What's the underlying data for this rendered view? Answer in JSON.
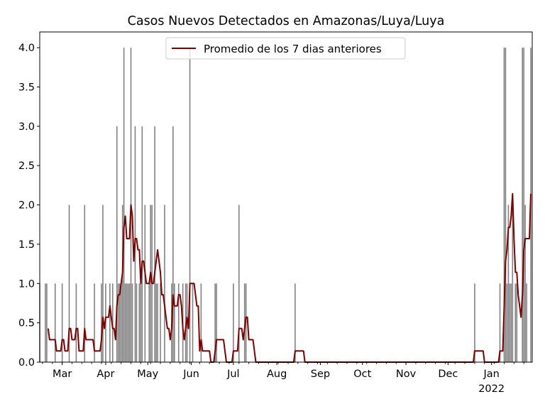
{
  "chart_data": {
    "type": "bar",
    "title": "Casos Nuevos Detectados en Amazonas/Luya/Luya",
    "xlabel": "",
    "ylabel": "",
    "xlim": [
      "2021-02-13",
      "2022-01-30"
    ],
    "ylim": [
      0,
      4.2
    ],
    "yticks": [
      "0.0",
      "0.5",
      "1.0",
      "1.5",
      "2.0",
      "2.5",
      "3.0",
      "3.5",
      "4.0"
    ],
    "xticks": [
      {
        "date": "2021-03-01",
        "label": "Mar"
      },
      {
        "date": "2021-04-01",
        "label": "Apr"
      },
      {
        "date": "2021-05-01",
        "label": "May"
      },
      {
        "date": "2021-06-01",
        "label": "Jun"
      },
      {
        "date": "2021-07-01",
        "label": "Jul"
      },
      {
        "date": "2021-08-01",
        "label": "Aug"
      },
      {
        "date": "2021-09-01",
        "label": "Sep"
      },
      {
        "date": "2021-10-01",
        "label": "Oct"
      },
      {
        "date": "2021-11-01",
        "label": "Nov"
      },
      {
        "date": "2021-12-01",
        "label": "Dec"
      },
      {
        "date": "2022-01-01",
        "label": "Jan",
        "sublabel": "2022"
      }
    ],
    "grid": false,
    "legend": {
      "position": "top-center",
      "entries": [
        {
          "label": "Promedio de los 7 dias anteriores",
          "color": "#800000"
        }
      ]
    },
    "colors": {
      "bars": "#808080",
      "line": "#800000"
    },
    "series": [
      {
        "kind": "bar",
        "note_zero_days_omitted": true,
        "points": [
          [
            "2021-02-13",
            1
          ],
          [
            "2021-02-17",
            1
          ],
          [
            "2021-02-18",
            1
          ],
          [
            "2021-02-24",
            1
          ],
          [
            "2021-03-01",
            1
          ],
          [
            "2021-03-06",
            2
          ],
          [
            "2021-03-11",
            1
          ],
          [
            "2021-03-17",
            2
          ],
          [
            "2021-03-24",
            1
          ],
          [
            "2021-03-29",
            1
          ],
          [
            "2021-03-30",
            2
          ],
          [
            "2021-04-01",
            1
          ],
          [
            "2021-04-04",
            1
          ],
          [
            "2021-04-06",
            1
          ],
          [
            "2021-04-09",
            3
          ],
          [
            "2021-04-10",
            1
          ],
          [
            "2021-04-11",
            1
          ],
          [
            "2021-04-12",
            1
          ],
          [
            "2021-04-13",
            2
          ],
          [
            "2021-04-14",
            4
          ],
          [
            "2021-04-15",
            1
          ],
          [
            "2021-04-16",
            1
          ],
          [
            "2021-04-17",
            1
          ],
          [
            "2021-04-18",
            1
          ],
          [
            "2021-04-19",
            4
          ],
          [
            "2021-04-20",
            1
          ],
          [
            "2021-04-22",
            3
          ],
          [
            "2021-04-23",
            1
          ],
          [
            "2021-04-25",
            1
          ],
          [
            "2021-04-26",
            1
          ],
          [
            "2021-04-27",
            3
          ],
          [
            "2021-04-29",
            2
          ],
          [
            "2021-05-02",
            1
          ],
          [
            "2021-05-03",
            2
          ],
          [
            "2021-05-04",
            2
          ],
          [
            "2021-05-06",
            3
          ],
          [
            "2021-05-07",
            1
          ],
          [
            "2021-05-08",
            1
          ],
          [
            "2021-05-10",
            1
          ],
          [
            "2021-05-13",
            2
          ],
          [
            "2021-05-18",
            1
          ],
          [
            "2021-05-19",
            3
          ],
          [
            "2021-05-20",
            1
          ],
          [
            "2021-05-23",
            1
          ],
          [
            "2021-05-26",
            1
          ],
          [
            "2021-05-28",
            1
          ],
          [
            "2021-05-29",
            1
          ],
          [
            "2021-05-31",
            4
          ],
          [
            "2021-06-02",
            1
          ],
          [
            "2021-06-08",
            1
          ],
          [
            "2021-06-18",
            1
          ],
          [
            "2021-06-19",
            1
          ],
          [
            "2021-07-01",
            1
          ],
          [
            "2021-07-05",
            2
          ],
          [
            "2021-07-09",
            1
          ],
          [
            "2021-07-10",
            1
          ],
          [
            "2021-08-14",
            1
          ],
          [
            "2021-12-20",
            1
          ],
          [
            "2022-01-07",
            1
          ],
          [
            "2022-01-10",
            4
          ],
          [
            "2022-01-11",
            4
          ],
          [
            "2022-01-12",
            1
          ],
          [
            "2022-01-13",
            2
          ],
          [
            "2022-01-14",
            1
          ],
          [
            "2022-01-15",
            1
          ],
          [
            "2022-01-16",
            2
          ],
          [
            "2022-01-18",
            1
          ],
          [
            "2022-01-19",
            1
          ],
          [
            "2022-01-23",
            4
          ],
          [
            "2022-01-24",
            4
          ],
          [
            "2022-01-25",
            2
          ],
          [
            "2022-01-26",
            1
          ],
          [
            "2022-01-29",
            4
          ]
        ]
      },
      {
        "kind": "line",
        "name": "Promedio de los 7 dias anteriores",
        "derived": "7-day rolling mean of bar series"
      }
    ]
  }
}
